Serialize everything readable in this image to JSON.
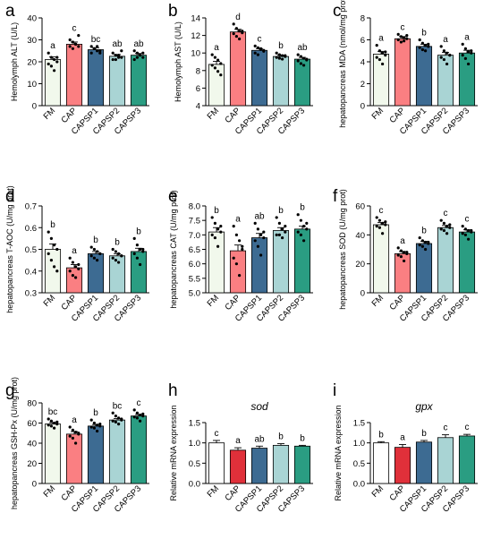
{
  "colors": {
    "fill": [
      "#f1f8ec",
      "#fa7f82",
      "#3d6b92",
      "#a9d4d4",
      "#2a9d82"
    ],
    "fill_h": [
      "#ffffff",
      "#e0303a",
      "#3d6b92",
      "#a9d4d4",
      "#2a9d82"
    ]
  },
  "chart_data": [
    {
      "panel": "a",
      "type": "bar",
      "title": "",
      "ylabel": "Hemolymph ALT (U/L)",
      "ylim": [
        0,
        40
      ],
      "yticks": [
        "0",
        "10",
        "20",
        "30",
        "40"
      ],
      "categories": [
        "FM",
        "CAP",
        "CAPSP1",
        "CAPSP2",
        "CAPSP3"
      ],
      "values": [
        21,
        28,
        25.5,
        22.5,
        23
      ],
      "errors": [
        1.2,
        1,
        0.9,
        0.8,
        0.8
      ],
      "letters": [
        "a",
        "c",
        "bc",
        "ab",
        "ab"
      ],
      "points": [
        [
          24,
          22,
          21,
          20,
          19,
          18,
          16,
          22
        ],
        [
          30,
          29,
          28,
          27,
          27,
          26,
          28,
          32
        ],
        [
          27,
          26,
          25,
          25,
          24,
          26,
          27,
          24
        ],
        [
          24,
          23,
          22,
          22,
          21,
          21,
          23,
          25
        ],
        [
          25,
          24,
          23,
          22,
          21,
          22,
          23,
          24
        ]
      ]
    },
    {
      "panel": "b",
      "type": "bar",
      "title": "",
      "ylabel": "Hemolymph AST (U/L)",
      "ylim": [
        4,
        14
      ],
      "yticks": [
        "4",
        "6",
        "8",
        "10",
        "12",
        "14"
      ],
      "categories": [
        "FM",
        "CAP",
        "CAPSP1",
        "CAPSP2",
        "CAPSP3"
      ],
      "values": [
        8.7,
        12.4,
        10.3,
        9.6,
        9.3
      ],
      "errors": [
        0.35,
        0.3,
        0.2,
        0.15,
        0.2
      ],
      "letters": [
        "a",
        "d",
        "c",
        "b",
        "ab"
      ],
      "points": [
        [
          9.8,
          9.5,
          9.2,
          8.8,
          8.6,
          8.3,
          7.9,
          7.5
        ],
        [
          13.3,
          12.8,
          12.5,
          12.3,
          12.2,
          11.9,
          11.6,
          12.5
        ],
        [
          10.8,
          10.6,
          10.4,
          10.2,
          10,
          9.8,
          10.5,
          10.3
        ],
        [
          10,
          9.8,
          9.7,
          9.6,
          9.5,
          9.4,
          9.3,
          9.7
        ],
        [
          9.8,
          9.6,
          9.4,
          9.3,
          9.1,
          8.8,
          8.6,
          9.2
        ]
      ]
    },
    {
      "panel": "c",
      "type": "bar",
      "title": "",
      "ylabel": "hepatopancreas MDA (nmol/mg prot)",
      "ylim": [
        0,
        8
      ],
      "yticks": [
        "0",
        "2",
        "4",
        "6",
        "8"
      ],
      "categories": [
        "FM",
        "CAP",
        "CAPSP1",
        "CAPSP2",
        "CAPSP3"
      ],
      "values": [
        4.7,
        6.1,
        5.4,
        4.6,
        4.8
      ],
      "errors": [
        0.25,
        0.2,
        0.2,
        0.25,
        0.25
      ],
      "letters": [
        "a",
        "c",
        "b",
        "a",
        "a"
      ],
      "points": [
        [
          5.5,
          5,
          4.8,
          4.6,
          4.4,
          4.2,
          3.8,
          4.9
        ],
        [
          6.5,
          6.3,
          6.2,
          6.1,
          6,
          5.8,
          5.9,
          6.4
        ],
        [
          6,
          5.7,
          5.5,
          5.4,
          5.3,
          5.1,
          5,
          5.6
        ],
        [
          5.4,
          5,
          4.8,
          4.6,
          4.4,
          4.2,
          3.8,
          4.6
        ],
        [
          5.6,
          5.2,
          4.9,
          4.8,
          4.6,
          4.3,
          3.8,
          5
        ]
      ]
    },
    {
      "panel": "d",
      "type": "bar",
      "title": "",
      "ylabel": "hepatopancreas T-AOC (U/mg prot)",
      "ylim": [
        0.3,
        0.7
      ],
      "yticks": [
        "0.3",
        "0.4",
        "0.5",
        "0.6",
        "0.7"
      ],
      "categories": [
        "FM",
        "CAP",
        "CAPSP1",
        "CAPSP2",
        "CAPSP3"
      ],
      "values": [
        0.5,
        0.415,
        0.48,
        0.47,
        0.49
      ],
      "errors": [
        0.025,
        0.015,
        0.01,
        0.01,
        0.015
      ],
      "letters": [
        "b",
        "a",
        "b",
        "b",
        "b"
      ],
      "points": [
        [
          0.58,
          0.55,
          0.52,
          0.5,
          0.48,
          0.45,
          0.42,
          0.4
        ],
        [
          0.46,
          0.44,
          0.42,
          0.41,
          0.4,
          0.38,
          0.37,
          0.43
        ],
        [
          0.51,
          0.5,
          0.49,
          0.48,
          0.47,
          0.46,
          0.45,
          0.48
        ],
        [
          0.5,
          0.49,
          0.48,
          0.47,
          0.46,
          0.45,
          0.44,
          0.47
        ],
        [
          0.55,
          0.52,
          0.5,
          0.49,
          0.48,
          0.46,
          0.43,
          0.5
        ]
      ]
    },
    {
      "panel": "e",
      "type": "bar",
      "title": "",
      "ylabel": "hepatopancreas CAT (U/mg prot)",
      "ylim": [
        5,
        8
      ],
      "yticks": [
        "5.0",
        "5.5",
        "6.0",
        "6.5",
        "7.0",
        "7.5",
        "8.0"
      ],
      "categories": [
        "FM",
        "CAP",
        "CAPSP1",
        "CAPSP2",
        "CAPSP3"
      ],
      "values": [
        7.1,
        6.45,
        6.9,
        7.15,
        7.2
      ],
      "errors": [
        0.15,
        0.2,
        0.15,
        0.1,
        0.1
      ],
      "letters": [
        "b",
        "a",
        "ab",
        "b",
        "b"
      ],
      "points": [
        [
          7.6,
          7.4,
          7.2,
          7.1,
          7,
          6.9,
          6.6,
          7.3
        ],
        [
          7.3,
          7,
          6.8,
          6.5,
          6.2,
          6,
          5.6,
          6.6
        ],
        [
          7.4,
          7.2,
          7,
          6.9,
          6.8,
          6.6,
          6.3,
          7.1
        ],
        [
          7.6,
          7.4,
          7.2,
          7.1,
          7,
          7,
          6.9,
          7.3
        ],
        [
          7.7,
          7.5,
          7.3,
          7.2,
          7.1,
          7,
          6.8,
          7.4
        ]
      ]
    },
    {
      "panel": "f",
      "type": "bar",
      "title": "",
      "ylabel": "hepatopancreas SOD (U/mg prot)",
      "ylim": [
        0,
        60
      ],
      "yticks": [
        "0",
        "20",
        "40",
        "60"
      ],
      "categories": [
        "FM",
        "CAP",
        "CAPSP1",
        "CAPSP2",
        "CAPSP3"
      ],
      "values": [
        47,
        27,
        34,
        45,
        42
      ],
      "errors": [
        1.5,
        1.5,
        1.5,
        1.5,
        1.5
      ],
      "letters": [
        "c",
        "a",
        "b",
        "c",
        "c"
      ],
      "points": [
        [
          52,
          50,
          48,
          47,
          46,
          45,
          41,
          49
        ],
        [
          31,
          29,
          28,
          27,
          26,
          25,
          22,
          28
        ],
        [
          38,
          36,
          35,
          34,
          33,
          32,
          30,
          35
        ],
        [
          50,
          48,
          46,
          45,
          44,
          43,
          41,
          47
        ],
        [
          46,
          44,
          43,
          42,
          41,
          40,
          37,
          43
        ]
      ]
    },
    {
      "panel": "g",
      "type": "bar",
      "title": "",
      "ylabel": "hepatopancreas GSH-Px (U/mg prot)",
      "ylim": [
        0,
        80
      ],
      "yticks": [
        "0",
        "20",
        "40",
        "60",
        "80"
      ],
      "categories": [
        "FM",
        "CAP",
        "CAPSP1",
        "CAPSP2",
        "CAPSP3"
      ],
      "values": [
        59,
        49,
        57,
        63,
        67
      ],
      "errors": [
        1.5,
        2.5,
        1.5,
        1.5,
        1.5
      ],
      "letters": [
        "bc",
        "a",
        "b",
        "bc",
        "c"
      ],
      "points": [
        [
          64,
          62,
          60,
          59,
          58,
          57,
          55,
          61
        ],
        [
          56,
          53,
          51,
          49,
          47,
          45,
          40,
          50
        ],
        [
          63,
          60,
          58,
          57,
          56,
          55,
          52,
          59
        ],
        [
          70,
          67,
          65,
          63,
          62,
          61,
          59,
          64
        ],
        [
          73,
          70,
          68,
          67,
          66,
          65,
          62,
          69
        ]
      ]
    },
    {
      "panel": "h",
      "type": "bar",
      "title": "sod",
      "ylabel": "Relative mRNA expression",
      "ylim": [
        0,
        1.5
      ],
      "yticks": [
        "0.0",
        "0.5",
        "1.0",
        "1.5"
      ],
      "categories": [
        "FM",
        "CAP",
        "CAPSP1",
        "CAPSP2",
        "CAPSP3"
      ],
      "values": [
        1.0,
        0.82,
        0.87,
        0.94,
        0.92
      ],
      "errors": [
        0.06,
        0.06,
        0.05,
        0.04,
        0.02
      ],
      "letters": [
        "c",
        "a",
        "ab",
        "b",
        "b"
      ],
      "points": []
    },
    {
      "panel": "i",
      "type": "bar",
      "title": "gpx",
      "ylabel": "Relative mRNA expression",
      "ylim": [
        0,
        1.5
      ],
      "yticks": [
        "0.0",
        "0.5",
        "1.0",
        "1.5"
      ],
      "categories": [
        "FM",
        "CAP",
        "CAPSP1",
        "CAPSP2",
        "CAPSP3"
      ],
      "values": [
        1.0,
        0.89,
        1.02,
        1.13,
        1.17
      ],
      "errors": [
        0.03,
        0.07,
        0.04,
        0.07,
        0.04
      ],
      "letters": [
        "b",
        "a",
        "b",
        "c",
        "c"
      ],
      "points": []
    }
  ]
}
